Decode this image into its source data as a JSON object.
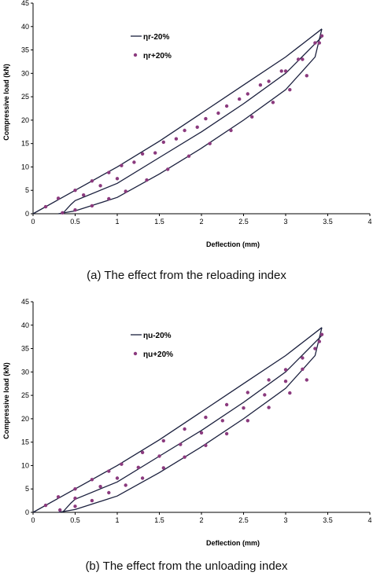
{
  "captions": {
    "a": "(a) The effect from the reloading index",
    "b": "(b) The effect from the unloading index"
  },
  "colors": {
    "line": "#1a1f3d",
    "marker": "#8b3a7e"
  },
  "chart_data": [
    {
      "type": "line",
      "xlabel": "Deflection (mm)",
      "ylabel": "Compressive load (kN)",
      "xlim": [
        0,
        4
      ],
      "ylim": [
        0,
        45
      ],
      "xticks": [
        0,
        0.5,
        1,
        1.5,
        2,
        2.5,
        3,
        3.5,
        4
      ],
      "xtick_labels": [
        "0",
        "0.5",
        "1",
        "1.5",
        "2",
        "2.5",
        "3",
        "3.5",
        "4"
      ],
      "yticks": [
        0,
        5,
        10,
        15,
        20,
        25,
        30,
        35,
        40,
        45
      ],
      "ytick_labels": [
        "0",
        "5",
        "10",
        "15",
        "20",
        "25",
        "30",
        "35",
        "40",
        "45"
      ],
      "grid": false,
      "legend_position": "top-left",
      "series": [
        {
          "name": "ηr-20%",
          "style": "line",
          "curves": [
            {
              "x": [
                0,
                0.5,
                1,
                1.5,
                2,
                2.5,
                3,
                3.43
              ],
              "y": [
                0,
                5,
                10,
                15.5,
                21.5,
                27.5,
                33.5,
                39.5
              ]
            },
            {
              "x": [
                0.35,
                0.45,
                0.5,
                1,
                1.5,
                2,
                2.5,
                3,
                3.43
              ],
              "y": [
                0,
                2,
                2.8,
                6.5,
                12,
                17.5,
                23.5,
                30,
                37.8
              ]
            },
            {
              "x": [
                0.3,
                0.5,
                1,
                1.5,
                2,
                2.5,
                3,
                3.2,
                3.35,
                3.43
              ],
              "y": [
                0,
                0.6,
                3.5,
                8.5,
                14,
                20,
                26.5,
                30.5,
                33.5,
                39.5
              ]
            }
          ]
        },
        {
          "name": "ηr+20%",
          "style": "markers",
          "x": [
            0.15,
            0.3,
            0.5,
            0.7,
            0.9,
            1.05,
            1.3,
            1.55,
            1.8,
            2.05,
            2.3,
            2.55,
            2.8,
            3.0,
            3.2,
            3.4,
            0.6,
            0.8,
            1.0,
            1.2,
            1.45,
            1.7,
            1.95,
            2.2,
            2.45,
            2.7,
            2.95,
            3.15,
            3.35,
            0.35,
            0.5,
            0.7,
            0.9,
            1.1,
            1.35,
            1.6,
            1.85,
            2.1,
            2.35,
            2.6,
            2.85,
            3.05,
            3.25,
            3.43
          ],
          "y": [
            1.5,
            3.3,
            5,
            7,
            8.8,
            10.3,
            12.8,
            15.3,
            17.8,
            20.3,
            23,
            25.6,
            28.3,
            30.5,
            33,
            36.5,
            4,
            6,
            7.5,
            11,
            13,
            16,
            18.5,
            21.5,
            24.5,
            27.5,
            30.5,
            33,
            36.5,
            0.2,
            0.8,
            1.7,
            3.2,
            4.8,
            7.2,
            9.5,
            12.3,
            15,
            17.8,
            20.7,
            23.8,
            26.5,
            29.5,
            38
          ]
        }
      ]
    },
    {
      "type": "line",
      "xlabel": "Deflection (mm)",
      "ylabel": "Compressive load (kN)",
      "xlim": [
        0,
        4
      ],
      "ylim": [
        0,
        45
      ],
      "xticks": [
        0,
        0.5,
        1,
        1.5,
        2,
        2.5,
        3,
        3.5,
        4
      ],
      "xtick_labels": [
        "0",
        "0.5",
        "1",
        "1.5",
        "2",
        "2.5",
        "3",
        "3.5",
        "4"
      ],
      "yticks": [
        0,
        5,
        10,
        15,
        20,
        25,
        30,
        35,
        40,
        45
      ],
      "ytick_labels": [
        "0",
        "5",
        "10",
        "15",
        "20",
        "25",
        "30",
        "35",
        "40",
        "45"
      ],
      "grid": false,
      "legend_position": "top-left",
      "series": [
        {
          "name": "ηu-20%",
          "style": "line",
          "curves": [
            {
              "x": [
                0,
                0.5,
                1,
                1.5,
                2,
                2.5,
                3,
                3.43
              ],
              "y": [
                0,
                5,
                10,
                15.5,
                21.5,
                27.5,
                33.5,
                39.5
              ]
            },
            {
              "x": [
                0.35,
                0.45,
                0.5,
                1,
                1.5,
                2,
                2.5,
                3,
                3.43
              ],
              "y": [
                0,
                2,
                2.8,
                6.5,
                12,
                17.5,
                23.5,
                30,
                37.8
              ]
            },
            {
              "x": [
                0.3,
                0.5,
                1,
                1.5,
                2,
                2.5,
                3,
                3.2,
                3.35,
                3.43
              ],
              "y": [
                0,
                0.6,
                3.5,
                8.5,
                14,
                20,
                26.5,
                30.5,
                33.5,
                39.5
              ]
            }
          ]
        },
        {
          "name": "ηu+20%",
          "style": "markers",
          "x": [
            0.15,
            0.3,
            0.5,
            0.7,
            0.9,
            1.05,
            1.3,
            1.55,
            1.8,
            2.05,
            2.3,
            2.55,
            2.8,
            3.0,
            3.2,
            3.4,
            0.5,
            0.8,
            1.0,
            1.25,
            1.5,
            1.75,
            2.0,
            2.25,
            2.5,
            2.75,
            3.0,
            3.2,
            3.35,
            0.32,
            0.5,
            0.7,
            0.9,
            1.1,
            1.3,
            1.55,
            1.8,
            2.05,
            2.3,
            2.55,
            2.8,
            3.05,
            3.25,
            3.43
          ],
          "y": [
            1.5,
            3.3,
            5,
            7,
            8.8,
            10.3,
            12.8,
            15.3,
            17.8,
            20.3,
            23,
            25.6,
            28.3,
            30.5,
            33,
            36.5,
            3,
            5.5,
            7.3,
            9.6,
            12,
            14.5,
            17,
            19.6,
            22.3,
            25.1,
            28,
            30.6,
            35,
            0.5,
            1.3,
            2.5,
            4.2,
            5.8,
            7.3,
            9.5,
            11.8,
            14.3,
            16.8,
            19.6,
            22.4,
            25.5,
            28.3,
            38
          ]
        }
      ]
    }
  ]
}
